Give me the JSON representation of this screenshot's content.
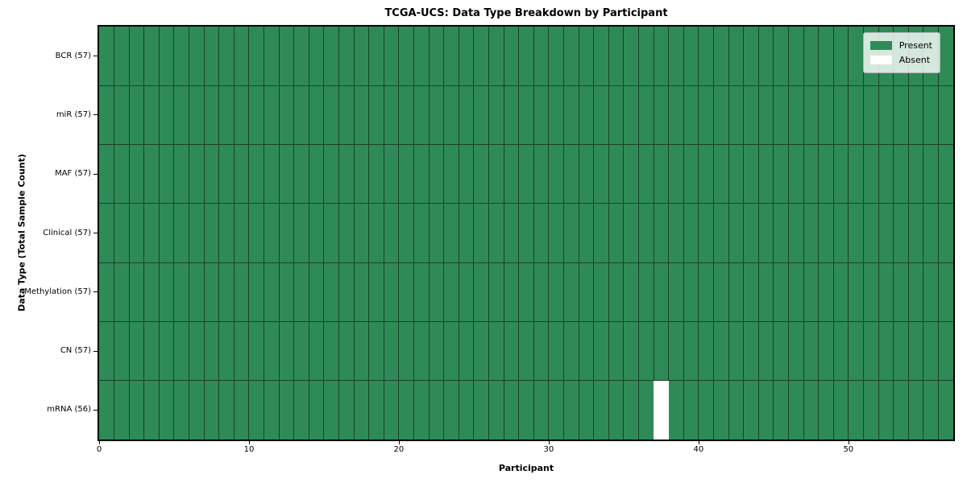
{
  "chart_data": {
    "type": "heatmap",
    "title": "TCGA-UCS: Data Type Breakdown by Participant",
    "xlabel": "Participant",
    "ylabel": "Data Type (Total Sample Count)",
    "n_participants": 57,
    "x_range": [
      0,
      57
    ],
    "x_ticks": [
      0,
      10,
      20,
      30,
      40,
      50
    ],
    "n_rows": 7,
    "rows": [
      {
        "data_type": "BCR",
        "label": "BCR (57)",
        "present_count": 57,
        "absent_participants": []
      },
      {
        "data_type": "miR",
        "label": "miR (57)",
        "present_count": 57,
        "absent_participants": []
      },
      {
        "data_type": "MAF",
        "label": "MAF (57)",
        "present_count": 57,
        "absent_participants": []
      },
      {
        "data_type": "Clinical",
        "label": "Clinical (57)",
        "present_count": 57,
        "absent_participants": []
      },
      {
        "data_type": "Methylation",
        "label": "Methylation (57)",
        "present_count": 57,
        "absent_participants": []
      },
      {
        "data_type": "CN",
        "label": "CN (57)",
        "present_count": 57,
        "absent_participants": []
      },
      {
        "data_type": "mRNA",
        "label": "mRNA (56)",
        "present_count": 56,
        "absent_participants": [
          37
        ]
      }
    ],
    "legend": [
      {
        "label": "Present",
        "color": "#2E8B57"
      },
      {
        "label": "Absent",
        "color": "#FFFFFF"
      }
    ],
    "colors": {
      "present": "#2E8B57",
      "absent": "#FFFFFF",
      "grid_line": "#1b4029",
      "spine": "#000000"
    },
    "legend_position": "upper right",
    "grid": true
  }
}
